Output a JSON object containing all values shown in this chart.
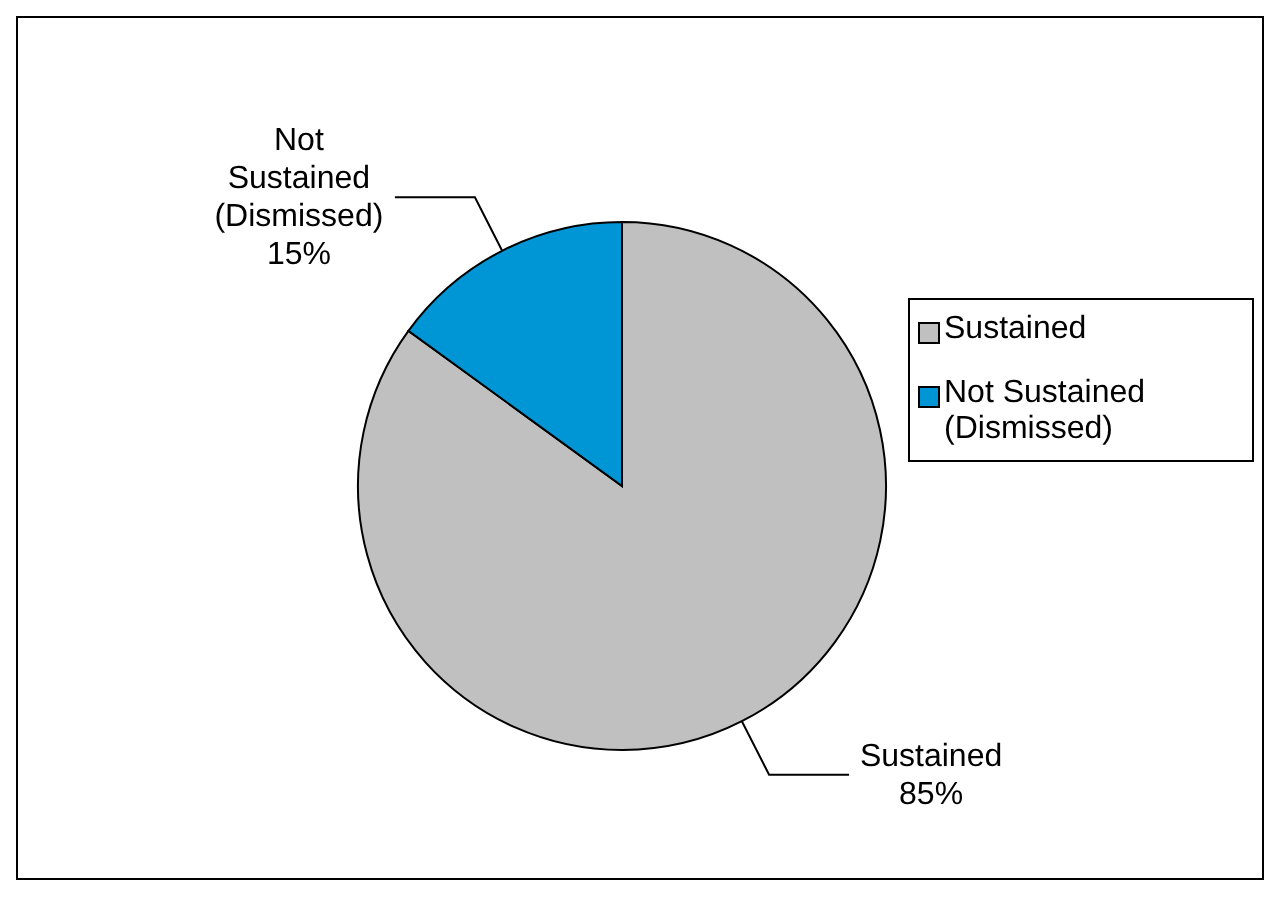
{
  "chart_data": {
    "type": "pie",
    "categories": [
      "Sustained",
      "Not Sustained (Dismissed)"
    ],
    "values": [
      85,
      15
    ],
    "value_labels": [
      "85%",
      "15%"
    ],
    "colors": [
      "#c0c0c0",
      "#0096d6"
    ],
    "legend": "right"
  }
}
